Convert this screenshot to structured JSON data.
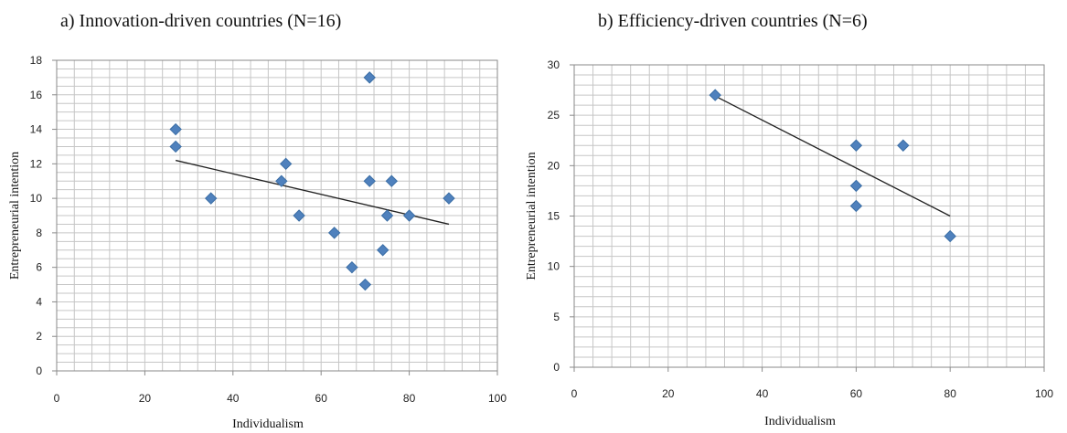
{
  "colors": {
    "marker": "#4f81bd",
    "marker_edge": "#3b6ea5",
    "trend": "#222222",
    "grid": "#c6c6c6",
    "frame": "#8a8a8a"
  },
  "chart_data": [
    {
      "type": "scatter",
      "title": "a) Innovation-driven countries (N=16)",
      "xlabel": "Individualism",
      "ylabel": "Entrepreneurial intention",
      "xlim": [
        0,
        100
      ],
      "ylim": [
        0,
        18
      ],
      "xticks": [
        "0",
        "20",
        "40",
        "60",
        "80",
        "100"
      ],
      "yticks": [
        "0",
        "2",
        "4",
        "6",
        "8",
        "10",
        "12",
        "14",
        "16",
        "18"
      ],
      "grid": true,
      "points": [
        {
          "x": 27,
          "y": 14
        },
        {
          "x": 27,
          "y": 13
        },
        {
          "x": 35,
          "y": 10
        },
        {
          "x": 51,
          "y": 11
        },
        {
          "x": 52,
          "y": 12
        },
        {
          "x": 55,
          "y": 9
        },
        {
          "x": 63,
          "y": 8
        },
        {
          "x": 67,
          "y": 6
        },
        {
          "x": 70,
          "y": 5
        },
        {
          "x": 71,
          "y": 17
        },
        {
          "x": 71,
          "y": 11
        },
        {
          "x": 74,
          "y": 7
        },
        {
          "x": 75,
          "y": 9
        },
        {
          "x": 76,
          "y": 11
        },
        {
          "x": 80,
          "y": 9
        },
        {
          "x": 89,
          "y": 10
        }
      ],
      "trendline": {
        "x": [
          27,
          89
        ],
        "y": [
          12.2,
          8.5
        ]
      }
    },
    {
      "type": "scatter",
      "title": "b) Efficiency-driven countries (N=6)",
      "xlabel": "Individualism",
      "ylabel": "Entrepreneurial intention",
      "xlim": [
        0,
        100
      ],
      "ylim": [
        0,
        30
      ],
      "xticks": [
        "0",
        "20",
        "40",
        "60",
        "80",
        "100"
      ],
      "yticks": [
        "0",
        "5",
        "10",
        "15",
        "20",
        "25",
        "30"
      ],
      "grid": true,
      "points": [
        {
          "x": 30,
          "y": 27
        },
        {
          "x": 60,
          "y": 22
        },
        {
          "x": 60,
          "y": 18
        },
        {
          "x": 60,
          "y": 16
        },
        {
          "x": 70,
          "y": 22
        },
        {
          "x": 80,
          "y": 13
        }
      ],
      "trendline": {
        "x": [
          30,
          80
        ],
        "y": [
          26.9,
          15
        ]
      }
    }
  ]
}
